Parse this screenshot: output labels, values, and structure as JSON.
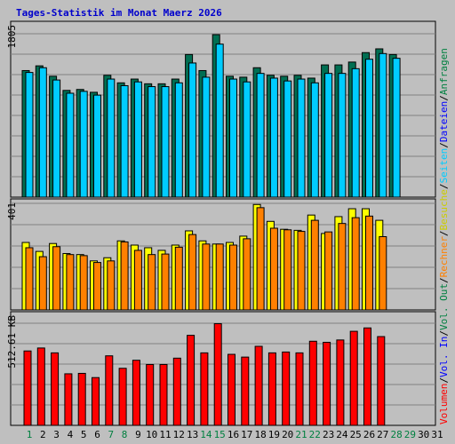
{
  "title": "Tages-Statistik im Monat Maerz 2026",
  "colors": {
    "background": "#bfbfbf",
    "grid": "#808080",
    "frame": "#000000",
    "title": "#0000cc",
    "day_default": "#000000",
    "day_weekend": "#008040",
    "anfragen": "#006e52",
    "dateien": "#00ccff",
    "seiten": "#00ccff",
    "besuche": "#ffff00",
    "rechner": "#ff8000",
    "kbytes": "#ff0000",
    "label_anfragen": "#008040",
    "label_dateien": "#0000ff",
    "label_seiten": "#00ccff",
    "label_besuche": "#cccc00",
    "label_rechner": "#ff8000",
    "label_out": "#008040",
    "label_in": "#0000ff",
    "label_volumen": "#ff0000",
    "separator": "#000000"
  },
  "right_labels": {
    "anfragen": "Anfragen",
    "dateien": "Dateien",
    "seiten": "Seiten",
    "besuche": "Besuche",
    "rechner": "Rechner",
    "vol_out": "Vol. Out",
    "vol_in": "Vol. In",
    "volumen": "Volumen",
    "sep": "/"
  },
  "chart_data": [
    {
      "type": "bar",
      "panel": "top",
      "ymax_label": "1805",
      "ylim": [
        0,
        1805
      ],
      "categories": [
        "1",
        "2",
        "3",
        "4",
        "5",
        "6",
        "7",
        "8",
        "9",
        "10",
        "11",
        "12",
        "13",
        "14",
        "15",
        "16",
        "17",
        "18",
        "19",
        "20",
        "21",
        "22",
        "23",
        "24",
        "25",
        "26",
        "27",
        "28",
        "29",
        "30",
        "31"
      ],
      "weekend_days": [
        "1",
        "7",
        "8",
        "14",
        "15",
        "21",
        "22",
        "28",
        "29"
      ],
      "series": [
        {
          "name": "Anfragen",
          "values": [
            1340,
            1390,
            1280,
            1130,
            1140,
            1110,
            1290,
            1210,
            1250,
            1200,
            1200,
            1250,
            1510,
            1340,
            1720,
            1280,
            1270,
            1370,
            1290,
            1280,
            1290,
            1260,
            1400,
            1400,
            1430,
            1530,
            1570,
            1510,
            null,
            null,
            null
          ]
        },
        {
          "name": "Dateien",
          "values": [
            1320,
            1370,
            1240,
            1100,
            1120,
            1080,
            1250,
            1180,
            1220,
            1170,
            1170,
            1210,
            1420,
            1270,
            1620,
            1250,
            1220,
            1310,
            1260,
            1230,
            1250,
            1210,
            1310,
            1310,
            1360,
            1460,
            1520,
            1470,
            null,
            null,
            null
          ]
        },
        {
          "name": "Seiten",
          "values": [
            0,
            0,
            0,
            0,
            0,
            0,
            0,
            0,
            0,
            0,
            0,
            0,
            0,
            0,
            0,
            0,
            0,
            0,
            0,
            0,
            0,
            0,
            0,
            0,
            0,
            0,
            0,
            0,
            null,
            null,
            null
          ]
        }
      ]
    },
    {
      "type": "bar",
      "panel": "middle",
      "ymax_label": "401",
      "ylim": [
        0,
        401
      ],
      "categories": [
        "1",
        "2",
        "3",
        "4",
        "5",
        "6",
        "7",
        "8",
        "9",
        "10",
        "11",
        "12",
        "13",
        "14",
        "15",
        "16",
        "17",
        "18",
        "19",
        "20",
        "21",
        "22",
        "23",
        "24",
        "25",
        "26",
        "27",
        "28",
        "29",
        "30",
        "31"
      ],
      "series": [
        {
          "name": "Besuche",
          "values": [
            256,
            222,
            252,
            214,
            210,
            186,
            198,
            262,
            246,
            236,
            226,
            246,
            300,
            262,
            250,
            256,
            280,
            400,
            336,
            306,
            302,
            360,
            290,
            354,
            384,
            384,
            340,
            null,
            null,
            null,
            null
          ]
        },
        {
          "name": "Rechner",
          "values": [
            236,
            202,
            240,
            210,
            206,
            180,
            186,
            258,
            226,
            210,
            212,
            238,
            286,
            250,
            250,
            246,
            270,
            388,
            310,
            304,
            298,
            340,
            296,
            328,
            350,
            356,
            278,
            null,
            null,
            null,
            null
          ]
        }
      ]
    },
    {
      "type": "bar",
      "panel": "bottom",
      "ymax_label": "512.61 KB",
      "ylim": [
        0,
        512.61
      ],
      "categories": [
        "1",
        "2",
        "3",
        "4",
        "5",
        "6",
        "7",
        "8",
        "9",
        "10",
        "11",
        "12",
        "13",
        "14",
        "15",
        "16",
        "17",
        "18",
        "19",
        "20",
        "21",
        "22",
        "23",
        "24",
        "25",
        "26",
        "27",
        "28",
        "29",
        "30",
        "31"
      ],
      "series": [
        {
          "name": "Volumen",
          "values": [
            352,
            366,
            343,
            244,
            246,
            226,
            329,
            270,
            308,
            288,
            288,
            318,
            426,
            343,
            481,
            336,
            323,
            374,
            343,
            347,
            343,
            398,
            393,
            404,
            445,
            461,
            420,
            null,
            null,
            null,
            null
          ]
        }
      ]
    }
  ]
}
